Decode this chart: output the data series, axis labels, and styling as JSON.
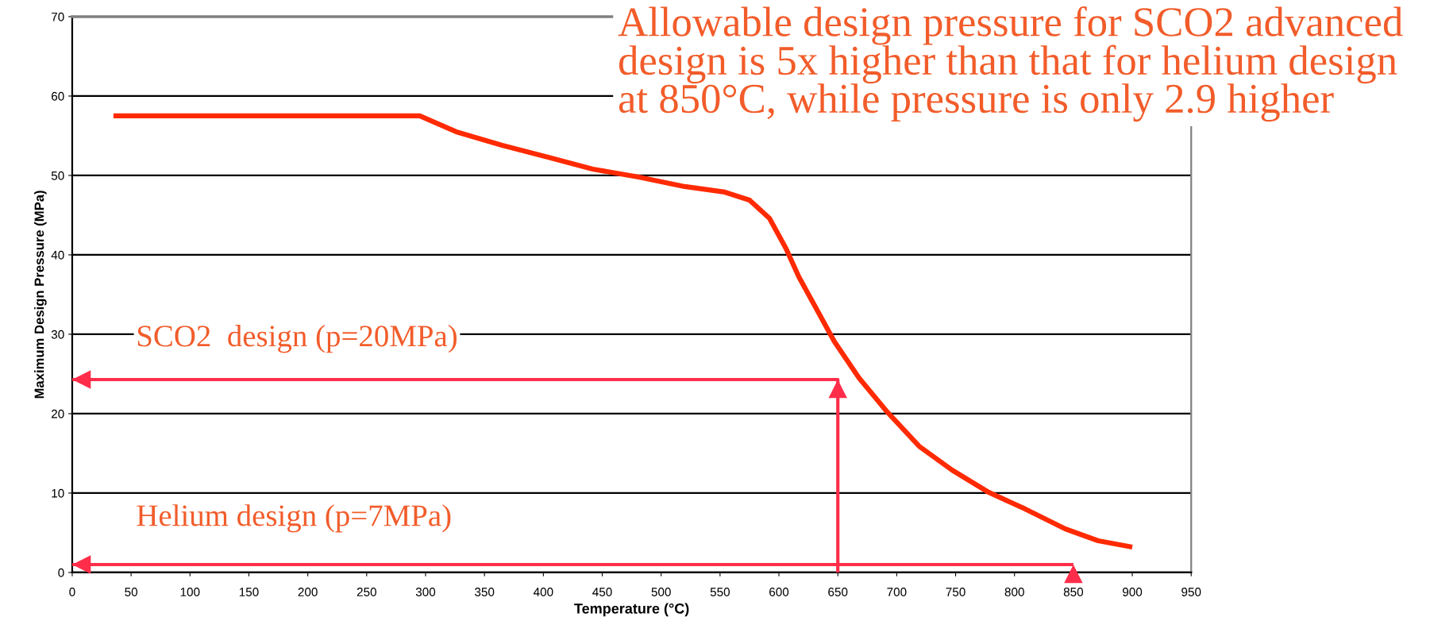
{
  "chart_data": {
    "type": "line",
    "xlabel": "Temperature (°C)",
    "ylabel": "Maximum Design Pressure (MPa)",
    "x": [
      35,
      100,
      200,
      260,
      295,
      326,
      365,
      404,
      442,
      481,
      520,
      554,
      575,
      592,
      606,
      617,
      630,
      647,
      668,
      692,
      719,
      747,
      778,
      809,
      843,
      871,
      900
    ],
    "series": [
      {
        "color": "#ff2a00",
        "values": [
          57.5,
          57.5,
          57.5,
          57.5,
          57.5,
          55.5,
          53.8,
          52.3,
          50.8,
          49.8,
          48.6,
          47.9,
          46.9,
          44.6,
          40.8,
          37.2,
          33.7,
          29.1,
          24.5,
          20.2,
          15.9,
          12.9,
          10.1,
          8.0,
          5.5,
          4.0,
          3.2
        ]
      },
      {
        "color": "#ff2d4a",
        "x": [
          0,
          650,
          650
        ],
        "values": [
          24.3,
          24.3,
          0
        ]
      },
      {
        "color": "#ff2d4a",
        "x": [
          0,
          850
        ],
        "values": [
          1,
          1
        ]
      }
    ],
    "xlim": [
      0,
      950
    ],
    "xticks": [
      0,
      50,
      100,
      150,
      200,
      250,
      300,
      350,
      400,
      450,
      500,
      550,
      600,
      650,
      700,
      750,
      800,
      850,
      900,
      950
    ],
    "ylim": [
      0,
      70
    ],
    "yticks": [
      0,
      10,
      20,
      30,
      40,
      50,
      60,
      70
    ],
    "grid": "y",
    "legend": false,
    "marker": "none",
    "line_style": "solid",
    "annotations": [
      "Allowable design pressure for SCO2 advanced design is 5x higher than that for helium design at 850°C, while pressure is only 2.9 higher",
      "SCO2  design (p=20MPa)",
      "Helium design (p=7MPa)"
    ]
  }
}
